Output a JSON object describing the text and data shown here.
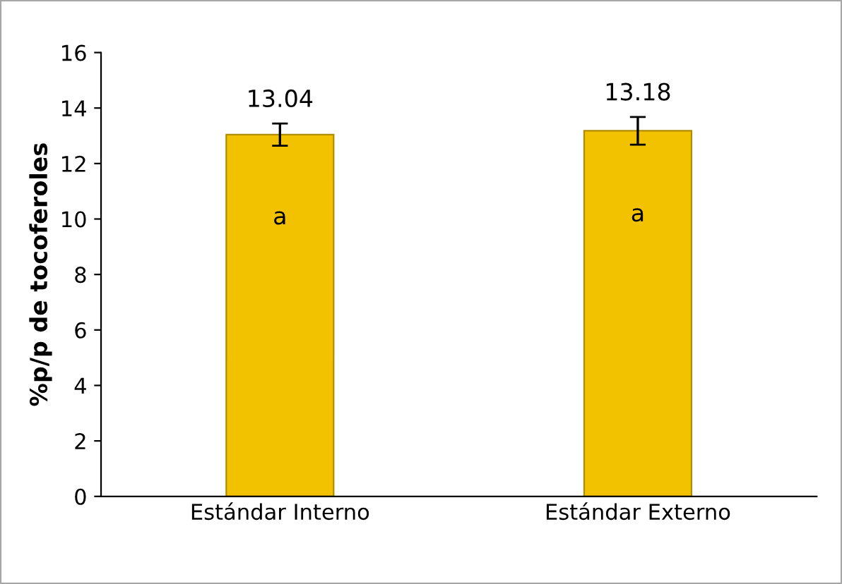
{
  "chart_data": {
    "type": "bar",
    "ylabel": "%p/p de tocoferoles",
    "categories": [
      "Estándar Interno",
      "Estándar Externo"
    ],
    "values": [
      13.04,
      13.18
    ],
    "errors": [
      0.4,
      0.5
    ],
    "color": "#f2c200",
    "data_labels": true,
    "annotations": [
      "a",
      "a"
    ],
    "ylim": [
      0,
      16
    ],
    "yticks": [
      0,
      2,
      4,
      6,
      8,
      10,
      12,
      14,
      16
    ],
    "grid": false,
    "legend": false
  }
}
